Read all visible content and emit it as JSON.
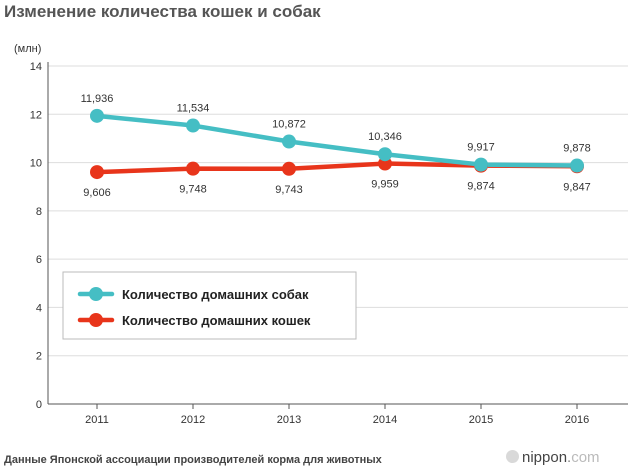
{
  "title": "Изменение количества кошек и собак",
  "source": "Данные Японской ассоциации производителей корма для животных",
  "brand": {
    "name": "nippon",
    "dot": ".",
    "domain": "com",
    "icon": "nippon-logo-icon"
  },
  "colors": {
    "dogs": "#45bec4",
    "cats": "#e8351b",
    "axis": "#555555",
    "grid": "#dddddd",
    "text": "#333333"
  },
  "chart_data": {
    "type": "line",
    "title": "Изменение количества кошек и собак",
    "ylabel": "(млн)",
    "xlabel": "",
    "ylim": [
      0,
      14
    ],
    "yticks": [
      0,
      2,
      4,
      6,
      8,
      10,
      12,
      14
    ],
    "grid": true,
    "legend_position": "lower-left",
    "categories": [
      "2011",
      "2012",
      "2013",
      "2014",
      "2015",
      "2016"
    ],
    "series": [
      {
        "name": "Количество домашних собак",
        "color": "#45bec4",
        "values": [
          11.936,
          11.534,
          10.872,
          10.346,
          9.917,
          9.878
        ],
        "labels": [
          "11,936",
          "11,534",
          "10,872",
          "10,346",
          "9,917",
          "9,878"
        ],
        "label_side": "above"
      },
      {
        "name": "Количество домашних кошек",
        "color": "#e8351b",
        "values": [
          9.606,
          9.748,
          9.743,
          9.959,
          9.874,
          9.847
        ],
        "labels": [
          "9,606",
          "9,748",
          "9,743",
          "9,959",
          "9,874",
          "9,847"
        ],
        "label_side": "below"
      }
    ]
  }
}
